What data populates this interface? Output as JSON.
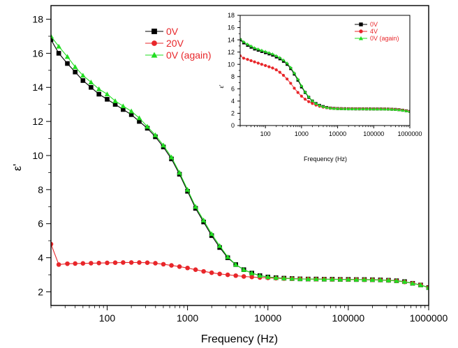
{
  "chart_data": [
    {
      "type": "line",
      "xlabel": "Frequency (Hz)",
      "ylabel": "ε'",
      "xscale": "log",
      "xlim": [
        20,
        1000000
      ],
      "ylim": [
        1.2,
        18.8
      ],
      "xticks": [
        100,
        1000,
        10000,
        100000,
        1000000
      ],
      "xtick_labels": [
        "100",
        "1000",
        "10000",
        "100000",
        "1000000"
      ],
      "yticks": [
        2,
        4,
        6,
        8,
        10,
        12,
        14,
        16,
        18
      ],
      "ytick_labels": [
        "2",
        "4",
        "6",
        "8",
        "10",
        "12",
        "14",
        "16",
        "18"
      ],
      "legend": "top-center",
      "grid": false,
      "series": [
        {
          "name": "0V",
          "color": "#000000",
          "marker": "square",
          "x": [
            20,
            25,
            32,
            40,
            50,
            63,
            79,
            100,
            126,
            158,
            200,
            251,
            316,
            398,
            501,
            631,
            794,
            1000,
            1259,
            1585,
            1995,
            2512,
            3162,
            3981,
            5012,
            6310,
            7943,
            10000,
            12589,
            15849,
            19953,
            25119,
            31623,
            39811,
            50119,
            63096,
            79433,
            100000,
            125893,
            158489,
            199526,
            251189,
            316228,
            398107,
            501187,
            630957,
            794328,
            1000000
          ],
          "y": [
            16.8,
            16.0,
            15.4,
            14.9,
            14.4,
            14.0,
            13.6,
            13.3,
            13.0,
            12.7,
            12.4,
            12.0,
            11.6,
            11.1,
            10.5,
            9.8,
            8.9,
            7.9,
            6.9,
            6.1,
            5.3,
            4.6,
            4.0,
            3.6,
            3.3,
            3.1,
            2.95,
            2.87,
            2.83,
            2.8,
            2.78,
            2.76,
            2.75,
            2.75,
            2.74,
            2.74,
            2.73,
            2.73,
            2.72,
            2.72,
            2.71,
            2.7,
            2.68,
            2.65,
            2.6,
            2.5,
            2.4,
            2.25
          ]
        },
        {
          "name": "20V",
          "color": "#e8262a",
          "marker": "circle",
          "x": [
            20,
            25,
            32,
            40,
            50,
            63,
            79,
            100,
            126,
            158,
            200,
            251,
            316,
            398,
            501,
            631,
            794,
            1000,
            1259,
            1585,
            1995,
            2512,
            3162,
            3981,
            5012,
            6310,
            7943,
            10000,
            12589,
            15849,
            19953,
            25119,
            31623,
            39811,
            50119,
            63096,
            79433,
            100000,
            125893,
            158489,
            199526,
            251189,
            316228,
            398107,
            501187,
            630957,
            794328,
            1000000
          ],
          "y": [
            4.8,
            3.6,
            3.65,
            3.66,
            3.67,
            3.68,
            3.69,
            3.7,
            3.71,
            3.72,
            3.72,
            3.72,
            3.71,
            3.68,
            3.62,
            3.55,
            3.48,
            3.4,
            3.3,
            3.2,
            3.12,
            3.05,
            3.0,
            2.95,
            2.9,
            2.87,
            2.84,
            2.82,
            2.8,
            2.78,
            2.77,
            2.76,
            2.75,
            2.74,
            2.74,
            2.73,
            2.73,
            2.72,
            2.72,
            2.71,
            2.7,
            2.69,
            2.67,
            2.64,
            2.58,
            2.5,
            2.4,
            2.25
          ]
        },
        {
          "name": "0V (again)",
          "color": "#22dd22",
          "marker": "triangle",
          "x": [
            20,
            25,
            32,
            40,
            50,
            63,
            79,
            100,
            126,
            158,
            200,
            251,
            316,
            398,
            501,
            631,
            794,
            1000,
            1259,
            1585,
            1995,
            2512,
            3162,
            3981,
            5012,
            6310,
            7943,
            10000,
            12589,
            15849,
            19953,
            25119,
            31623,
            39811,
            50119,
            63096,
            79433,
            100000,
            125893,
            158489,
            199526,
            251189,
            316228,
            398107,
            501187,
            630957,
            794328,
            1000000
          ],
          "y": [
            17.0,
            16.4,
            15.8,
            15.2,
            14.7,
            14.3,
            13.9,
            13.6,
            13.2,
            12.9,
            12.6,
            12.2,
            11.7,
            11.2,
            10.6,
            9.9,
            9.0,
            8.0,
            7.0,
            6.2,
            5.4,
            4.7,
            4.05,
            3.6,
            3.3,
            3.1,
            2.95,
            2.87,
            2.83,
            2.8,
            2.78,
            2.76,
            2.75,
            2.75,
            2.74,
            2.74,
            2.73,
            2.73,
            2.72,
            2.72,
            2.71,
            2.7,
            2.68,
            2.65,
            2.6,
            2.5,
            2.4,
            2.25
          ]
        }
      ]
    },
    {
      "type": "line",
      "xlabel": "Frequency (Hz)",
      "ylabel": "ε'",
      "xscale": "log",
      "xlim": [
        20,
        1000000
      ],
      "ylim": [
        0,
        18
      ],
      "xticks": [
        100,
        1000,
        10000,
        100000,
        1000000
      ],
      "xtick_labels": [
        "100",
        "1000",
        "10000",
        "100000",
        "1000000"
      ],
      "yticks": [
        0,
        2,
        4,
        6,
        8,
        10,
        12,
        14,
        16,
        18
      ],
      "ytick_labels": [
        "0",
        "2",
        "4",
        "6",
        "8",
        "10",
        "12",
        "14",
        "16",
        "18"
      ],
      "legend": "top-right",
      "grid": false,
      "series": [
        {
          "name": "0V",
          "color": "#000000",
          "marker": "square",
          "x": [
            20,
            25,
            32,
            40,
            50,
            63,
            79,
            100,
            126,
            158,
            200,
            251,
            316,
            398,
            501,
            631,
            794,
            1000,
            1259,
            1585,
            1995,
            2512,
            3162,
            3981,
            5012,
            6310,
            7943,
            10000,
            12589,
            15849,
            19953,
            25119,
            31623,
            39811,
            50119,
            63096,
            79433,
            100000,
            125893,
            158489,
            199526,
            251189,
            316228,
            398107,
            501187,
            630957,
            794328,
            1000000
          ],
          "y": [
            14.0,
            13.5,
            13.1,
            12.8,
            12.5,
            12.3,
            12.1,
            11.9,
            11.7,
            11.5,
            11.2,
            10.9,
            10.5,
            10.0,
            9.3,
            8.4,
            7.4,
            6.3,
            5.4,
            4.6,
            4.0,
            3.6,
            3.3,
            3.1,
            2.95,
            2.85,
            2.8,
            2.77,
            2.75,
            2.74,
            2.73,
            2.73,
            2.72,
            2.72,
            2.72,
            2.71,
            2.71,
            2.7,
            2.7,
            2.7,
            2.69,
            2.68,
            2.66,
            2.63,
            2.58,
            2.5,
            2.4,
            2.3
          ]
        },
        {
          "name": "4V",
          "color": "#e8262a",
          "marker": "circle",
          "x": [
            20,
            25,
            32,
            40,
            50,
            63,
            79,
            100,
            126,
            158,
            200,
            251,
            316,
            398,
            501,
            631,
            794,
            1000,
            1259,
            1585,
            1995,
            2512,
            3162,
            3981,
            5012,
            6310,
            7943,
            10000,
            12589,
            15849,
            19953,
            25119,
            31623,
            39811,
            50119,
            63096,
            79433,
            100000,
            125893,
            158489,
            199526,
            251189,
            316228,
            398107,
            501187,
            630957,
            794328,
            1000000
          ],
          "y": [
            11.4,
            11.0,
            10.8,
            10.6,
            10.4,
            10.2,
            10.0,
            9.8,
            9.6,
            9.4,
            9.1,
            8.7,
            8.2,
            7.6,
            6.9,
            6.1,
            5.4,
            4.8,
            4.3,
            3.9,
            3.6,
            3.35,
            3.15,
            3.0,
            2.9,
            2.83,
            2.79,
            2.76,
            2.75,
            2.74,
            2.73,
            2.73,
            2.72,
            2.72,
            2.72,
            2.71,
            2.71,
            2.7,
            2.7,
            2.7,
            2.69,
            2.68,
            2.66,
            2.63,
            2.58,
            2.5,
            2.4,
            2.3
          ]
        },
        {
          "name": "0V (again)",
          "color": "#22dd22",
          "marker": "triangle",
          "x": [
            20,
            25,
            32,
            40,
            50,
            63,
            79,
            100,
            126,
            158,
            200,
            251,
            316,
            398,
            501,
            631,
            794,
            1000,
            1259,
            1585,
            1995,
            2512,
            3162,
            3981,
            5012,
            6310,
            7943,
            10000,
            12589,
            15849,
            19953,
            25119,
            31623,
            39811,
            50119,
            63096,
            79433,
            100000,
            125893,
            158489,
            199526,
            251189,
            316228,
            398107,
            501187,
            630957,
            794328,
            1000000
          ],
          "y": [
            14.2,
            13.7,
            13.3,
            13.0,
            12.7,
            12.5,
            12.3,
            12.1,
            11.9,
            11.7,
            11.4,
            11.1,
            10.7,
            10.2,
            9.5,
            8.6,
            7.6,
            6.5,
            5.5,
            4.7,
            4.05,
            3.6,
            3.3,
            3.1,
            2.95,
            2.85,
            2.8,
            2.77,
            2.75,
            2.74,
            2.73,
            2.73,
            2.72,
            2.72,
            2.72,
            2.71,
            2.71,
            2.7,
            2.7,
            2.7,
            2.69,
            2.68,
            2.66,
            2.63,
            2.58,
            2.5,
            2.4,
            2.3
          ]
        }
      ]
    }
  ]
}
